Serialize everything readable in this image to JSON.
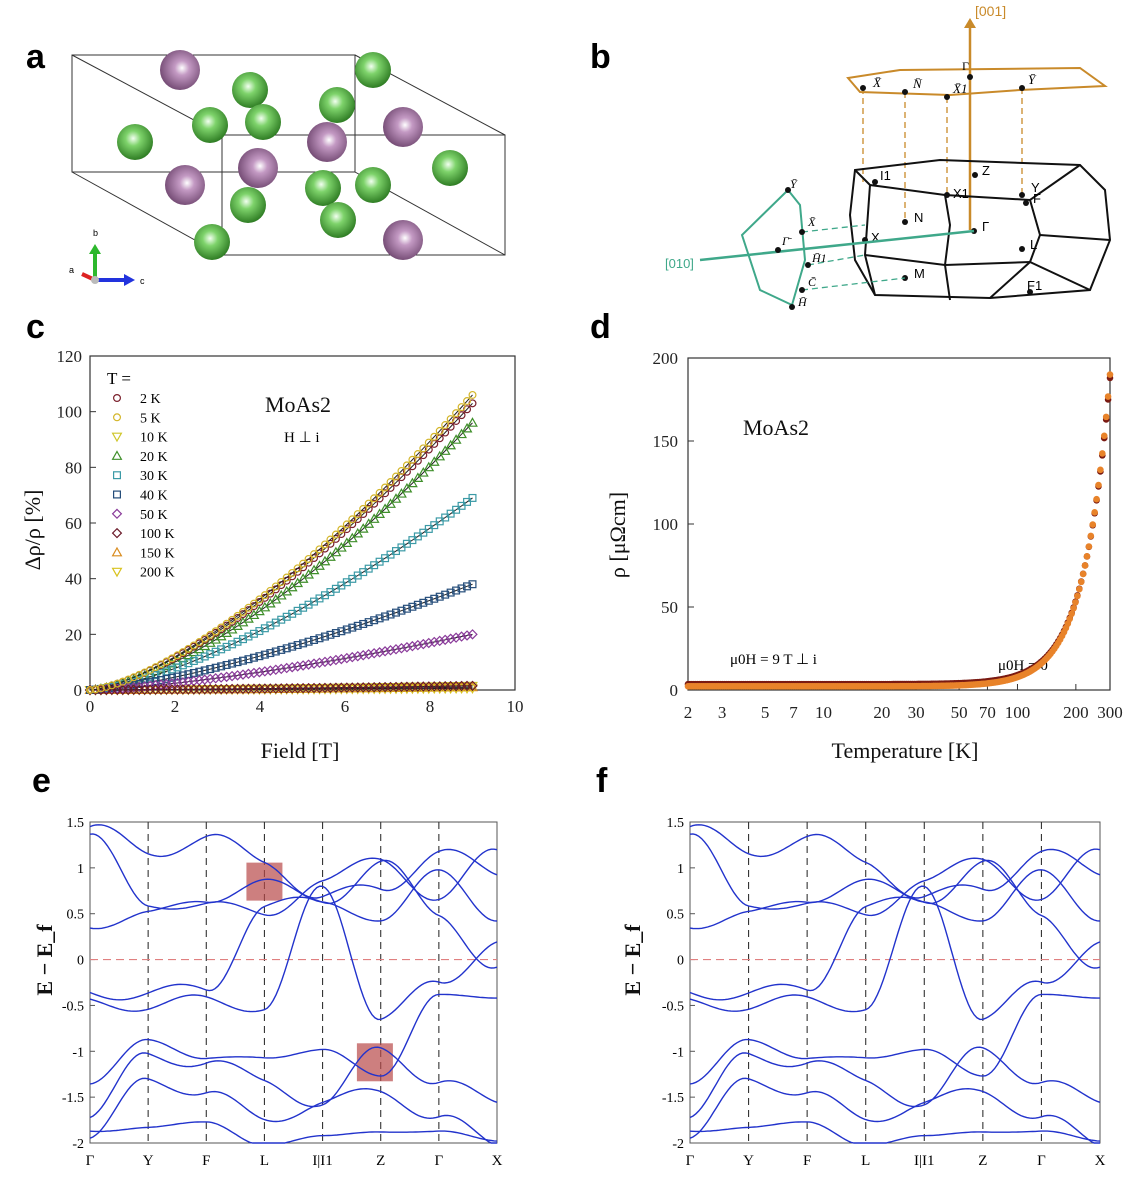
{
  "panels": {
    "a": {
      "label": "a",
      "axes": {
        "a": "a",
        "b": "b",
        "c": "c"
      }
    },
    "b": {
      "label": "b",
      "dir_top": "[001]",
      "dir_side": "[010]",
      "top_points": [
        "X̄",
        "N̄",
        "X̄1",
        "Γ",
        "Ȳ"
      ],
      "side_points": [
        "Ȳ",
        "X̄",
        "Γ̄",
        "H̄1",
        "C̄",
        "H̄"
      ],
      "bz_points": [
        "Z",
        "I1",
        "X1",
        "Y",
        "F",
        "N",
        "X",
        "Γ",
        "L",
        "M",
        "F1"
      ]
    },
    "c": {
      "label": "c"
    },
    "d": {
      "label": "d"
    },
    "e": {
      "label": "e"
    },
    "f": {
      "label": "f"
    }
  },
  "chart_data": [
    {
      "panel": "c",
      "type": "scatter",
      "title": "MoAs2",
      "subtitle": "H ⊥ i",
      "xlabel": "Field [T]",
      "ylabel": "Δρ/ρ [%]",
      "xlim": [
        0,
        10
      ],
      "ylim": [
        0,
        120
      ],
      "xticks": [
        0,
        2,
        4,
        6,
        8,
        10
      ],
      "yticks": [
        0,
        20,
        40,
        60,
        80,
        100,
        120
      ],
      "legend_title": "T =",
      "legend_position": "top-left",
      "series": [
        {
          "name": "2 K",
          "marker": "circle",
          "color": "#7a1f2b",
          "max": 103,
          "exp": 1.45
        },
        {
          "name": "5 K",
          "marker": "circle",
          "color": "#d4b62a",
          "max": 106,
          "exp": 1.45
        },
        {
          "name": "10 K",
          "marker": "triangle-down",
          "color": "#cfc62a",
          "max": 1.5,
          "exp": 1.4
        },
        {
          "name": "20 K",
          "marker": "triangle-up",
          "color": "#3f8f2a",
          "max": 96,
          "exp": 1.5
        },
        {
          "name": "30 K",
          "marker": "square",
          "color": "#3b9aa6",
          "max": 69,
          "exp": 1.45
        },
        {
          "name": "40 K",
          "marker": "square",
          "color": "#254d7a",
          "max": 38,
          "exp": 1.4
        },
        {
          "name": "50 K",
          "marker": "diamond",
          "color": "#8a3b9a",
          "max": 20,
          "exp": 1.4
        },
        {
          "name": "100 K",
          "marker": "diamond",
          "color": "#6b1a2a",
          "max": 1.5,
          "exp": 1.4
        },
        {
          "name": "150 K",
          "marker": "triangle-up",
          "color": "#d98c1f",
          "max": 1.0,
          "exp": 1.4
        },
        {
          "name": "200 K",
          "marker": "triangle-down",
          "color": "#d8c21e",
          "max": 0.6,
          "exp": 1.4
        }
      ],
      "field_max": 9
    },
    {
      "panel": "d",
      "type": "scatter",
      "title": "MoAs2",
      "xlabel": "Temperature [K]",
      "ylabel": "ρ [μΩcm]",
      "xscale": "log",
      "xlim": [
        2,
        300
      ],
      "ylim": [
        0,
        200
      ],
      "xticks": [
        2,
        3,
        5,
        7,
        10,
        20,
        30,
        50,
        70,
        100,
        200,
        300
      ],
      "xtick_labels": [
        "2",
        "3",
        "5",
        "7",
        "10",
        "20",
        "30",
        "50",
        "70",
        "100",
        "200",
        "300"
      ],
      "yticks": [
        0,
        50,
        100,
        150,
        200
      ],
      "annotations": [
        "μ0H = 9 T ⊥ i",
        "μ0H = 0"
      ],
      "series": [
        {
          "name": "μ0H = 9 T ⊥ i",
          "color": "#7a1a12",
          "rho0": 3.5,
          "T_end": 300,
          "rho_end": 188
        },
        {
          "name": "μ0H = 0",
          "color": "#e8832a",
          "rho0": 2.2,
          "T_end": 300,
          "rho_end": 190
        }
      ]
    },
    {
      "panel": "e",
      "type": "line",
      "ylabel": "E − E_f",
      "ylim": [
        -2,
        1.5
      ],
      "yticks": [
        -2,
        -1.5,
        -1,
        -0.5,
        0,
        0.5,
        1,
        1.5
      ],
      "ytick_labels": [
        "-2",
        "-1.5",
        "-1",
        "-0.5",
        "0",
        "0.5",
        "1",
        "1.5"
      ],
      "kpath": [
        "Γ",
        "Y",
        "F",
        "L",
        "I|I1",
        "Z",
        "Γ",
        "X"
      ],
      "highlights": [
        {
          "kpos": 3.0,
          "energy": 0.85
        },
        {
          "kpos": 4.9,
          "energy": -1.12
        }
      ]
    },
    {
      "panel": "f",
      "type": "line",
      "ylabel": "E − E_f",
      "ylim": [
        -2,
        1.5
      ],
      "yticks": [
        -2,
        -1.5,
        -1,
        -0.5,
        0,
        0.5,
        1,
        1.5
      ],
      "ytick_labels": [
        "-2",
        "-1.5",
        "-1",
        "-0.5",
        "0",
        "0.5",
        "1",
        "1.5"
      ],
      "kpath": [
        "Γ",
        "Y",
        "F",
        "L",
        "I|I1",
        "Z",
        "Γ",
        "X"
      ],
      "highlights": []
    }
  ],
  "colors": {
    "atom_green": "#4caf3d",
    "atom_purple": "#a87ea8",
    "bz_top": "#c98a2a",
    "bz_side": "#3fa88a",
    "band": "#2233cc",
    "fermi": "#e08080",
    "highlight": "#b84848"
  }
}
